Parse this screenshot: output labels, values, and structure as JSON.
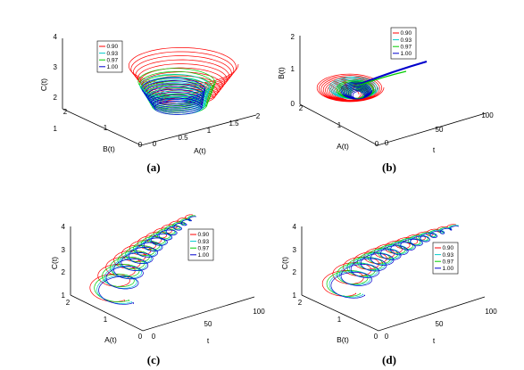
{
  "chart_data": [
    {
      "panel": "(a)",
      "type": "line",
      "view": "3d",
      "xlabel": "A(t)",
      "ylabel": "B(t)",
      "zlabel": "C(t)",
      "x_ticks": [
        "0",
        "0.5",
        "1",
        "1.5",
        "2"
      ],
      "y_ticks": [
        "0",
        "1",
        "2"
      ],
      "z_ticks": [
        "1",
        "2",
        "3",
        "4"
      ],
      "xlim": [
        0,
        2
      ],
      "ylim": [
        0,
        2
      ],
      "zlim": [
        1,
        4
      ],
      "legend": "top-left",
      "series": [
        {
          "name": "0.90",
          "color": "#ff0000"
        },
        {
          "name": "0.93",
          "color": "#00cccc"
        },
        {
          "name": "0.97",
          "color": "#00cc00"
        },
        {
          "name": "1.00",
          "color": "#0000cc"
        }
      ]
    },
    {
      "panel": "(b)",
      "type": "line",
      "view": "3d",
      "xlabel": "t",
      "ylabel": "A(t)",
      "zlabel": "B(t)",
      "x_ticks": [
        "0",
        "50",
        "100"
      ],
      "y_ticks": [
        "0",
        "1",
        "2"
      ],
      "z_ticks": [
        "0",
        "1",
        "2"
      ],
      "xlim": [
        0,
        100
      ],
      "ylim": [
        0,
        2
      ],
      "zlim": [
        0,
        2
      ],
      "legend": "top",
      "series": [
        {
          "name": "0.90",
          "color": "#ff0000"
        },
        {
          "name": "0.93",
          "color": "#00cccc"
        },
        {
          "name": "0.97",
          "color": "#00cc00"
        },
        {
          "name": "1.00",
          "color": "#0000cc"
        }
      ]
    },
    {
      "panel": "(c)",
      "type": "line",
      "view": "3d",
      "xlabel": "t",
      "ylabel": "A(t)",
      "zlabel": "C(t)",
      "x_ticks": [
        "0",
        "50",
        "100"
      ],
      "y_ticks": [
        "0",
        "1",
        "2"
      ],
      "z_ticks": [
        "1",
        "2",
        "3",
        "4"
      ],
      "xlim": [
        0,
        100
      ],
      "ylim": [
        0,
        2
      ],
      "zlim": [
        1,
        4
      ],
      "legend": "right",
      "series": [
        {
          "name": "0.90",
          "color": "#ff0000"
        },
        {
          "name": "0.93",
          "color": "#00cccc"
        },
        {
          "name": "0.97",
          "color": "#00cc00"
        },
        {
          "name": "1.00",
          "color": "#0000cc"
        }
      ]
    },
    {
      "panel": "(d)",
      "type": "line",
      "view": "3d",
      "xlabel": "t",
      "ylabel": "B(t)",
      "zlabel": "C(t)",
      "x_ticks": [
        "0",
        "50",
        "100"
      ],
      "y_ticks": [
        "0",
        "1",
        "2"
      ],
      "z_ticks": [
        "1",
        "2",
        "3",
        "4"
      ],
      "xlim": [
        0,
        100
      ],
      "ylim": [
        0,
        2
      ],
      "zlim": [
        1,
        4
      ],
      "legend": "right",
      "series": [
        {
          "name": "0.90",
          "color": "#ff0000"
        },
        {
          "name": "0.93",
          "color": "#00cccc"
        },
        {
          "name": "0.97",
          "color": "#00cc00"
        },
        {
          "name": "1.00",
          "color": "#0000cc"
        }
      ]
    }
  ]
}
